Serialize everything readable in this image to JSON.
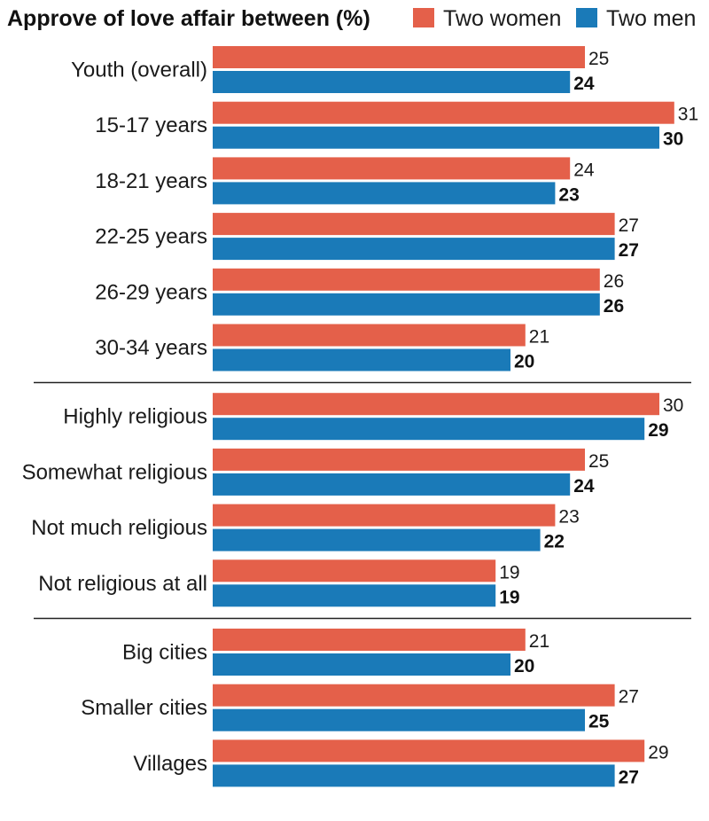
{
  "chart_data": {
    "type": "bar",
    "orientation": "horizontal",
    "title": "Approve of love affair between (%)",
    "legend": {
      "placement": "top-right"
    },
    "categories": [
      "Youth (overall)",
      "15-17 years",
      "18-21 years",
      "22-25 years",
      "26-29 years",
      "30-34 years",
      "Highly religious",
      "Somewhat religious",
      "Not much religious",
      "Not religious at all",
      "Big cities",
      "Smaller cities",
      "Villages"
    ],
    "groups": [
      {
        "start": 0,
        "end": 5
      },
      {
        "start": 6,
        "end": 9
      },
      {
        "start": 10,
        "end": 12
      }
    ],
    "series": [
      {
        "name": "Two women",
        "color": "#e4604a",
        "values": [
          25,
          31,
          24,
          27,
          26,
          21,
          30,
          25,
          23,
          19,
          21,
          27,
          29
        ]
      },
      {
        "name": "Two men",
        "color": "#1a7ab8",
        "values": [
          24,
          30,
          23,
          27,
          26,
          20,
          29,
          24,
          22,
          19,
          20,
          25,
          27
        ]
      }
    ],
    "xlim": [
      0,
      34
    ],
    "grid": false
  }
}
